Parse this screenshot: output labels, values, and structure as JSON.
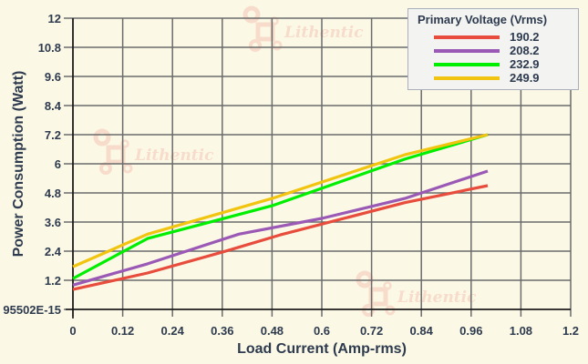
{
  "chart_data": {
    "type": "line",
    "title": "",
    "xlabel": "Load Current (Amp-rms)",
    "ylabel": "Power Consumption (Watt)",
    "xlim": [
      0,
      1.2
    ],
    "ylim": [
      0,
      12
    ],
    "x_ticks": [
      "0",
      "0.12",
      "0.24",
      "0.36",
      "0.48",
      "0.6",
      "0.72",
      "0.84",
      "0.96",
      "1.08",
      "1.2"
    ],
    "y_ticks": [
      "95502E-15",
      "1.2",
      "2.4",
      "3.6",
      "4.8",
      "6",
      "7.2",
      "8.4",
      "9.6",
      "10.8",
      "12"
    ],
    "grid": true,
    "legend": {
      "title": "Primary Voltage (Vrms)",
      "position": "top-right"
    },
    "series": [
      {
        "name": "190.2",
        "color": "#e74c3c",
        "x": [
          0,
          0.18,
          0.36,
          0.5,
          0.8,
          1.0
        ],
        "y": [
          0.82,
          1.5,
          2.36,
          3.07,
          4.4,
          5.1
        ]
      },
      {
        "name": "208.2",
        "color": "#9b59b6",
        "x": [
          0,
          0.18,
          0.4,
          0.6,
          0.8,
          1.0
        ],
        "y": [
          1.0,
          1.88,
          3.1,
          3.75,
          4.57,
          5.7
        ]
      },
      {
        "name": "232.9",
        "color": "#00ee00",
        "x": [
          0,
          0.18,
          0.48,
          0.8,
          1.0
        ],
        "y": [
          1.27,
          2.92,
          4.27,
          6.19,
          7.2
        ]
      },
      {
        "name": "249.9",
        "color": "#f1c40f",
        "x": [
          0,
          0.18,
          0.48,
          0.8,
          1.0
        ],
        "y": [
          1.76,
          3.1,
          4.57,
          6.37,
          7.2
        ]
      }
    ]
  },
  "watermark": {
    "text": "Lithentic"
  }
}
